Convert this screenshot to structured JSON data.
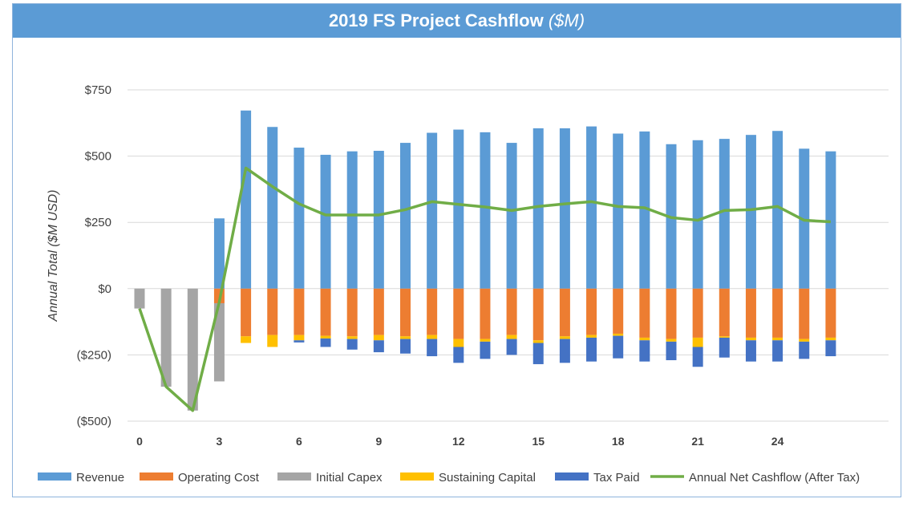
{
  "chart_data": {
    "type": "bar",
    "title": "2019 FS Project Cashflow",
    "title_unit": "($M)",
    "ylabel": "Annual Total ($M USD)",
    "xlabel": "",
    "ylim": [
      -500,
      750
    ],
    "yticks": [
      -500,
      -250,
      0,
      250,
      500,
      750
    ],
    "ytick_labels": [
      "($500)",
      "($250)",
      "$0",
      "$250",
      "$500",
      "$750"
    ],
    "xtick_labels": [
      "0",
      "3",
      "6",
      "9",
      "12",
      "15",
      "18",
      "21",
      "24"
    ],
    "x": [
      0,
      1,
      2,
      3,
      4,
      5,
      6,
      7,
      8,
      9,
      10,
      11,
      12,
      13,
      14,
      15,
      16,
      17,
      18,
      19,
      20,
      21,
      22,
      23,
      24,
      25,
      26
    ],
    "grid": "horizontal",
    "legend_position": "bottom",
    "series": [
      {
        "name": "Revenue",
        "kind": "bar",
        "color": "#5b9bd5",
        "values": [
          0,
          0,
          0,
          265,
          672,
          610,
          532,
          505,
          518,
          520,
          550,
          588,
          600,
          590,
          550,
          605,
          605,
          612,
          585,
          593,
          545,
          560,
          565,
          580,
          595,
          528,
          518
        ]
      },
      {
        "name": "Operating Cost",
        "kind": "bar",
        "color": "#ed7d31",
        "values": [
          0,
          0,
          0,
          -55,
          -180,
          -175,
          -175,
          -178,
          -180,
          -175,
          -180,
          -175,
          -190,
          -190,
          -175,
          -195,
          -180,
          -175,
          -170,
          -185,
          -190,
          -185,
          -180,
          -185,
          -185,
          -190,
          -185
        ]
      },
      {
        "name": "Initial Capex",
        "kind": "bar",
        "color": "#a5a5a5",
        "values": [
          -75,
          -370,
          -460,
          -295,
          0,
          0,
          0,
          0,
          0,
          0,
          0,
          0,
          0,
          0,
          0,
          0,
          0,
          0,
          0,
          0,
          0,
          0,
          0,
          0,
          0,
          0,
          0
        ]
      },
      {
        "name": "Sustaining Capital",
        "kind": "bar",
        "color": "#ffc000",
        "values": [
          0,
          0,
          0,
          0,
          -25,
          -45,
          -20,
          -10,
          -10,
          -20,
          -10,
          -15,
          -30,
          -10,
          -15,
          -10,
          -10,
          -10,
          -8,
          -10,
          -10,
          -35,
          -5,
          -10,
          -10,
          -10,
          -10
        ]
      },
      {
        "name": "Tax Paid",
        "kind": "bar",
        "color": "#4472c4",
        "values": [
          0,
          0,
          0,
          0,
          0,
          0,
          -8,
          -32,
          -40,
          -45,
          -55,
          -65,
          -60,
          -65,
          -60,
          -80,
          -90,
          -90,
          -85,
          -80,
          -70,
          -75,
          -75,
          -80,
          -80,
          -65,
          -60
        ]
      },
      {
        "name": "Annual Net Cashflow (After Tax)",
        "kind": "line",
        "color": "#70ad47",
        "values": [
          -75,
          -370,
          -460,
          -50,
          455,
          385,
          320,
          278,
          278,
          278,
          298,
          328,
          318,
          308,
          295,
          310,
          320,
          328,
          310,
          305,
          268,
          258,
          295,
          298,
          310,
          258,
          252
        ]
      }
    ]
  }
}
